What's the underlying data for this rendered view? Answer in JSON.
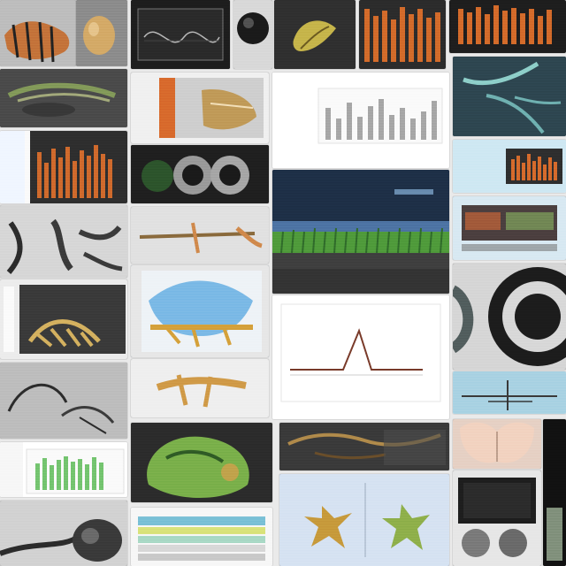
{
  "collage": {
    "tiles": [
      {
        "name": "tile-top-left-animal-stripes",
        "kind": "photo"
      },
      {
        "name": "tile-top-left-egg",
        "kind": "photo"
      },
      {
        "name": "tile-top-screen-waveform",
        "kind": "photo"
      },
      {
        "name": "tile-top-orb",
        "kind": "photo"
      },
      {
        "name": "tile-top-leaf",
        "kind": "photo"
      },
      {
        "name": "tile-top-orange-bars",
        "kind": "chart"
      },
      {
        "name": "tile-top-orange-bars-2",
        "kind": "chart"
      },
      {
        "name": "tile-left-fossil-1",
        "kind": "photo"
      },
      {
        "name": "tile-left-chart-1",
        "kind": "chart"
      },
      {
        "name": "tile-left-tree-roots",
        "kind": "photo"
      },
      {
        "name": "tile-left-rib-skeleton",
        "kind": "photo"
      },
      {
        "name": "tile-left-hand-drawn",
        "kind": "photo"
      },
      {
        "name": "tile-left-green-bars",
        "kind": "chart"
      },
      {
        "name": "tile-left-bottom-closeup",
        "kind": "photo"
      },
      {
        "name": "tile-middle-eyes",
        "kind": "photo"
      },
      {
        "name": "tile-middle-specimen-1",
        "kind": "photo"
      },
      {
        "name": "tile-middle-blue-specimen",
        "kind": "photo"
      },
      {
        "name": "tile-middle-bone",
        "kind": "photo"
      },
      {
        "name": "tile-middle-green-creature",
        "kind": "photo"
      },
      {
        "name": "tile-middle-table",
        "kind": "photo"
      },
      {
        "name": "tile-center-bar-chart",
        "kind": "chart"
      },
      {
        "name": "tile-center-night-field",
        "kind": "photo"
      },
      {
        "name": "tile-center-line-chart",
        "kind": "chart"
      },
      {
        "name": "tile-center-roots",
        "kind": "photo"
      },
      {
        "name": "tile-center-starfish",
        "kind": "photo"
      },
      {
        "name": "tile-right-roots",
        "kind": "photo"
      },
      {
        "name": "tile-right-orange-chart",
        "kind": "chart"
      },
      {
        "name": "tile-right-lab-screen",
        "kind": "photo"
      },
      {
        "name": "tile-right-dark-ring",
        "kind": "photo"
      },
      {
        "name": "tile-right-skin",
        "kind": "photo"
      },
      {
        "name": "tile-right-monitor",
        "kind": "photo"
      },
      {
        "name": "tile-right-small-strip",
        "kind": "photo"
      }
    ]
  }
}
